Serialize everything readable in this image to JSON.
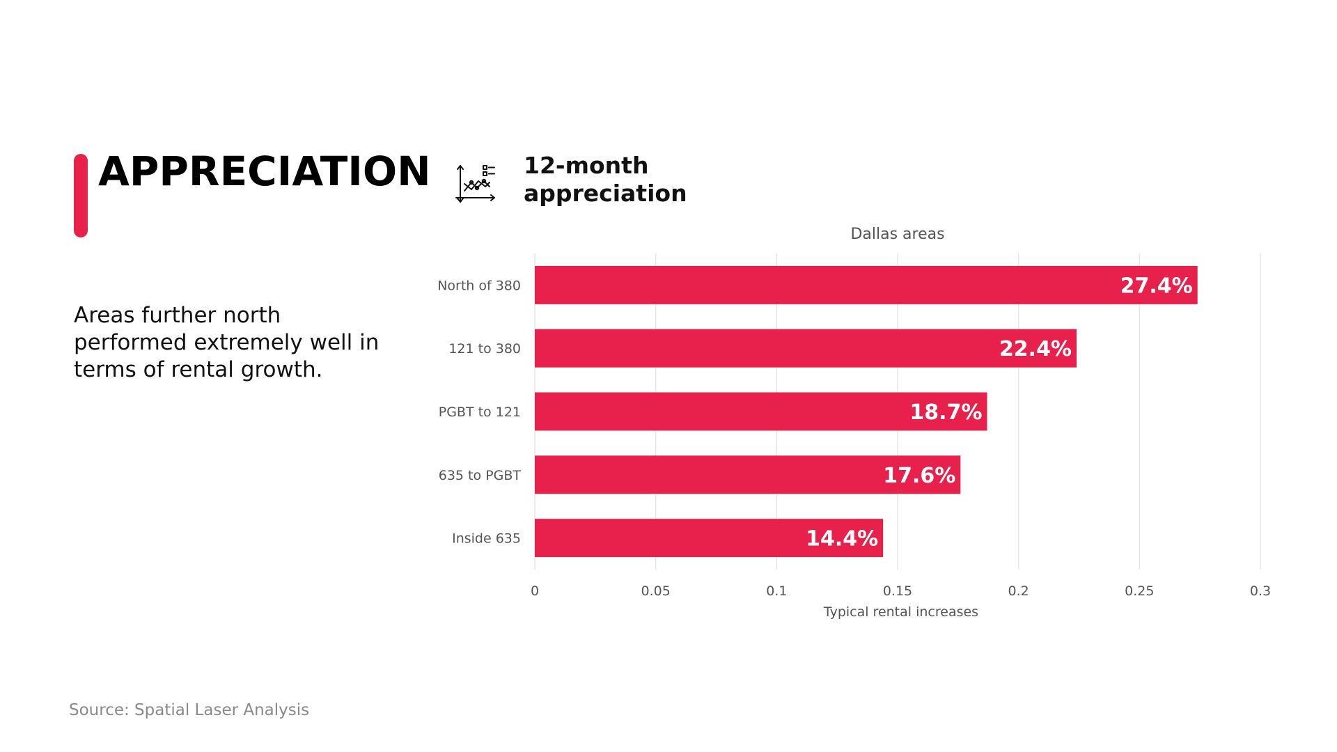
{
  "page": {
    "title": "APPRECIATION",
    "description": "Areas further north performed extremely well in terms of rental growth.",
    "source": "Source: Spatial Laser Analysis",
    "accent_color": "#e8204c"
  },
  "chart_header": {
    "icon": "line-chart-icon",
    "title_line1": "12-month",
    "title_line2": "appreciation"
  },
  "chart_data": {
    "type": "bar",
    "orientation": "horizontal",
    "title": "Dallas areas",
    "xlabel": "Typical rental increases",
    "ylabel": "",
    "categories": [
      "North of 380",
      "121 to 380",
      "PGBT to 121",
      "635 to PGBT",
      "Inside 635"
    ],
    "values": [
      0.274,
      0.224,
      0.187,
      0.176,
      0.144
    ],
    "data_labels": [
      "27.4%",
      "22.4%",
      "18.7%",
      "17.6%",
      "14.4%"
    ],
    "xlim": [
      0,
      0.3
    ],
    "ticks": [
      0,
      0.05,
      0.1,
      0.15,
      0.2,
      0.25,
      0.3
    ],
    "tick_labels": [
      "0",
      "0.05",
      "0.1",
      "0.15",
      "0.2",
      "0.25",
      "0.3"
    ],
    "grid": true,
    "bar_color": "#e8204c"
  }
}
